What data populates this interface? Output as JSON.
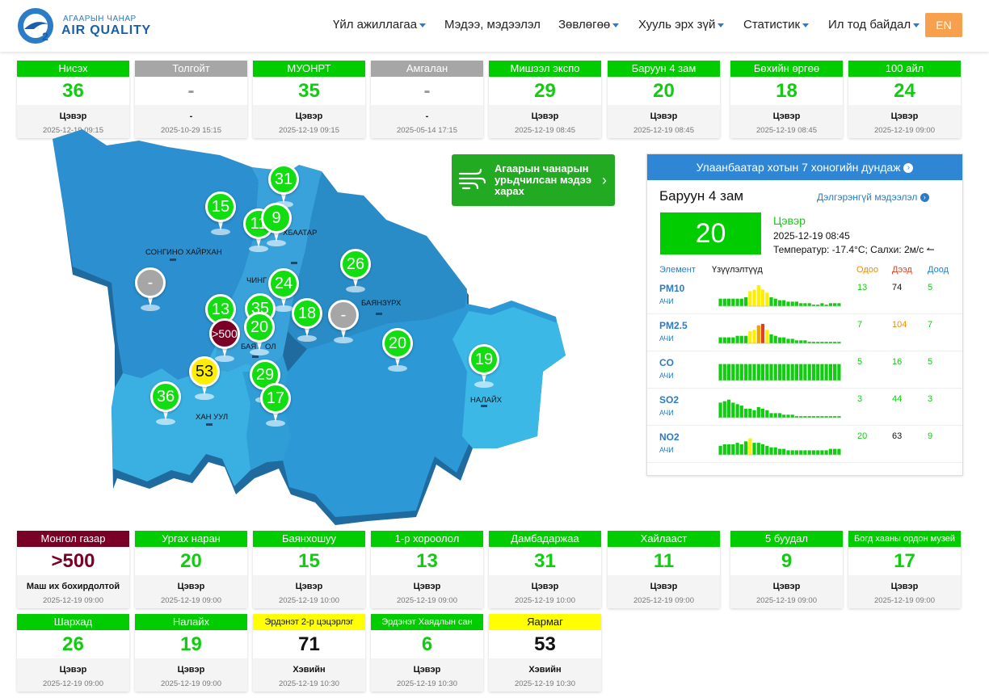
{
  "header": {
    "logo_small": "АГААРЫН ЧАНАР",
    "logo_big": "AIR QUALITY",
    "nav": [
      {
        "label": "Үйл ажиллагаа",
        "dropdown": true
      },
      {
        "label": "Мэдээ, мэдээлэл",
        "dropdown": false
      },
      {
        "label": "Зөвлөгөө",
        "dropdown": true
      },
      {
        "label": "Хууль эрх зүй",
        "dropdown": true
      },
      {
        "label": "Статистик",
        "dropdown": true
      },
      {
        "label": "Ил тод байдал",
        "dropdown": true
      }
    ],
    "lang": "EN"
  },
  "colors": {
    "good": "#00cc00",
    "moderate": "#ffff00",
    "hazardous": "#7b0026",
    "no_data": "#a6a6a6",
    "accent": "#2f86d4",
    "lang_button": "#f7a04d"
  },
  "top_stations": [
    {
      "name": "Нисэх",
      "value": "36",
      "status": "Цэвэр",
      "time": "2025-12-19 09:15",
      "level": "green"
    },
    {
      "name": "Толгойт",
      "value": "-",
      "status": "-",
      "time": "2025-10-29 15:15",
      "level": "gray"
    },
    {
      "name": "МУОНРТ",
      "value": "35",
      "status": "Цэвэр",
      "time": "2025-12-19 09:15",
      "level": "green"
    },
    {
      "name": "Амгалан",
      "value": "-",
      "status": "-",
      "time": "2025-05-14 17:15",
      "level": "gray"
    },
    {
      "name": "Мишээл экспо",
      "value": "29",
      "status": "Цэвэр",
      "time": "2025-12-19 08:45",
      "level": "green"
    },
    {
      "name": "Баруун 4 зам",
      "value": "20",
      "status": "Цэвэр",
      "time": "2025-12-19 08:45",
      "level": "green"
    },
    {
      "name": "Бөхийн өргөө",
      "value": "18",
      "status": "Цэвэр",
      "time": "2025-12-19 08:45",
      "level": "green"
    },
    {
      "name": "100 айл",
      "value": "24",
      "status": "Цэвэр",
      "time": "2025-12-19 09:00",
      "level": "green"
    }
  ],
  "bottom_stations_row1": [
    {
      "name": "Монгол газар",
      "value": ">500",
      "status": "Маш их бохирдолтой",
      "time": "2025-12-19 09:00",
      "level": "maroon"
    },
    {
      "name": "Ургах наран",
      "value": "20",
      "status": "Цэвэр",
      "time": "2025-12-19 09:00",
      "level": "green"
    },
    {
      "name": "Баянхошуу",
      "value": "15",
      "status": "Цэвэр",
      "time": "2025-12-19 10:00",
      "level": "green"
    },
    {
      "name": "1-р хороолол",
      "value": "13",
      "status": "Цэвэр",
      "time": "2025-12-19 09:00",
      "level": "green"
    },
    {
      "name": "Дамбадаржаа",
      "value": "31",
      "status": "Цэвэр",
      "time": "2025-12-19 10:00",
      "level": "green"
    },
    {
      "name": "Хайлааст",
      "value": "11",
      "status": "Цэвэр",
      "time": "2025-12-19 09:00",
      "level": "green"
    },
    {
      "name": "5 буудал",
      "value": "9",
      "status": "Цэвэр",
      "time": "2025-12-19 09:00",
      "level": "green"
    },
    {
      "name": "Богд хааны ордон музей",
      "value": "17",
      "status": "Цэвэр",
      "time": "2025-12-19 09:00",
      "level": "green"
    }
  ],
  "bottom_stations_row2": [
    {
      "name": "Шархад",
      "value": "26",
      "status": "Цэвэр",
      "time": "2025-12-19 09:00",
      "level": "green"
    },
    {
      "name": "Налайх",
      "value": "19",
      "status": "Цэвэр",
      "time": "2025-12-19 09:00",
      "level": "green"
    },
    {
      "name": "Эрдэнэт 2-р цэцэрлэг",
      "value": "71",
      "status": "Хэвийн",
      "time": "2025-12-19 10:30",
      "level": "yellow"
    },
    {
      "name": "Эрдэнэт Хаядлын сан",
      "value": "6",
      "status": "Цэвэр",
      "time": "2025-12-19 10:30",
      "level": "green"
    },
    {
      "name": "Яармаг",
      "value": "53",
      "status": "Хэвийн",
      "time": "2025-12-19 10:30",
      "level": "yellow"
    }
  ],
  "map": {
    "districts": [
      "СОНГИНО ХАЙРХАН",
      "БАЯНЗҮРХ",
      "ЧИНГ",
      "ХАН УУЛ",
      "НАЛАЙХ",
      "БАЯ",
      "ОЛ",
      "ХБААТАР"
    ],
    "pins": [
      {
        "value": "15",
        "level": "green"
      },
      {
        "value": "31",
        "level": "green"
      },
      {
        "value": "11",
        "level": "green"
      },
      {
        "value": "9",
        "level": "green"
      },
      {
        "value": "-",
        "level": "gray"
      },
      {
        "value": "26",
        "level": "green"
      },
      {
        "value": "24",
        "level": "green"
      },
      {
        "value": "13",
        "level": "green"
      },
      {
        "value": "35",
        "level": "green"
      },
      {
        "value": ">500",
        "level": "maroon"
      },
      {
        "value": "20",
        "level": "green"
      },
      {
        "value": "18",
        "level": "green"
      },
      {
        "value": "-",
        "level": "gray"
      },
      {
        "value": "20",
        "level": "green"
      },
      {
        "value": "19",
        "level": "green"
      },
      {
        "value": "53",
        "level": "yellow"
      },
      {
        "value": "29",
        "level": "green"
      },
      {
        "value": "36",
        "level": "green"
      },
      {
        "value": "17",
        "level": "green"
      }
    ]
  },
  "forecast": {
    "label": "Агаарын чанарын урьдчилсан мэдээ харах",
    "icon": "wind-icon"
  },
  "panel": {
    "title": "Улаанбаатар хотын 7 хоногийн дундаж",
    "station": "Баруун 4 зам",
    "more": "Дэлгэрэнгүй мэдээлэл",
    "aqi": "20",
    "status": "Цэвэр",
    "time": "2025-12-19 08:45",
    "weather": "Температур: -17.4°C; Салхи: 2м/с",
    "col_element": "Элемент",
    "col_indicator": "Үзүүлэлтүүд",
    "col_now": "Одоо",
    "col_max": "Дээд",
    "col_min": "Доод",
    "pollutants": [
      {
        "name": "PM10",
        "unit": "АЧИ",
        "now": "13",
        "max": "74",
        "min": "5",
        "max_color": "#111111",
        "bars": [
          5,
          5,
          5,
          5,
          5,
          5,
          6,
          10,
          11,
          14,
          11,
          9,
          6,
          5,
          4,
          4,
          3,
          3,
          3,
          2,
          2,
          2,
          1,
          1,
          2,
          1,
          2,
          2,
          2
        ],
        "colors": "gggggggyyyyyggggggggggggggggg"
      },
      {
        "name": "PM2.5",
        "unit": "АЧИ",
        "now": "7",
        "max": "104",
        "min": "7",
        "max_color": "#f08c00",
        "bars": [
          4,
          4,
          4,
          4,
          5,
          5,
          5,
          8,
          9,
          12,
          13,
          9,
          6,
          5,
          4,
          4,
          3,
          3,
          2,
          2,
          2,
          1,
          1,
          1,
          1,
          1,
          1,
          1,
          1
        ],
        "colors": "gggggggyyoryggggggggggggggggg"
      },
      {
        "name": "CO",
        "unit": "АЧИ",
        "now": "5",
        "max": "16",
        "min": "5",
        "max_color": "#11cc11",
        "bars": [
          11,
          11,
          11,
          11,
          11,
          11,
          11,
          11,
          11,
          11,
          11,
          11,
          11,
          11,
          11,
          11,
          11,
          11,
          11,
          11,
          11,
          11,
          11,
          11,
          11,
          11,
          11,
          11,
          11
        ],
        "colors": "ggggggggggggggggggggggggggggg"
      },
      {
        "name": "SO2",
        "unit": "АЧИ",
        "now": "3",
        "max": "44",
        "min": "3",
        "max_color": "#11cc11",
        "bars": [
          10,
          11,
          12,
          10,
          9,
          8,
          6,
          6,
          5,
          7,
          6,
          5,
          3,
          3,
          3,
          2,
          2,
          2,
          1,
          1,
          1,
          1,
          1,
          1,
          1,
          1,
          1,
          1,
          1
        ],
        "colors": "ggggggggggggggggggggggggggggg"
      },
      {
        "name": "NO2",
        "unit": "АЧИ",
        "now": "20",
        "max": "63",
        "min": "9",
        "max_color": "#111111",
        "bars": [
          6,
          7,
          7,
          7,
          8,
          7,
          9,
          11,
          8,
          8,
          7,
          6,
          5,
          5,
          4,
          4,
          3,
          3,
          3,
          3,
          3,
          3,
          3,
          3,
          3,
          3,
          4,
          4,
          4
        ],
        "colors": "gggggggyggggggggggggggggggggg"
      }
    ]
  }
}
